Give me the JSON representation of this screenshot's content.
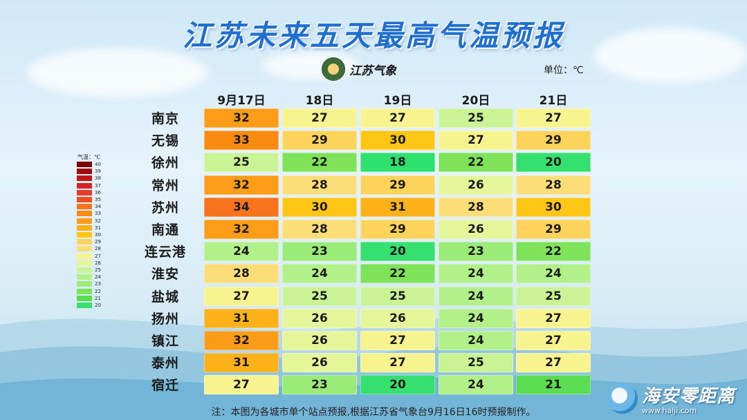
{
  "title": "江苏未来五天最高气温预报",
  "logo": {
    "text": "江苏气象"
  },
  "unit": "单位：℃",
  "chart_data": {
    "type": "table",
    "title": "江苏未来五天最高气温预报",
    "columns": [
      "9月17日",
      "18日",
      "19日",
      "20日",
      "21日"
    ],
    "rows": [
      {
        "city": "南京",
        "values": [
          32,
          27,
          27,
          25,
          27
        ]
      },
      {
        "city": "无锡",
        "values": [
          33,
          29,
          30,
          27,
          29
        ]
      },
      {
        "city": "徐州",
        "values": [
          25,
          22,
          18,
          22,
          20
        ]
      },
      {
        "city": "常州",
        "values": [
          32,
          28,
          29,
          26,
          28
        ]
      },
      {
        "city": "苏州",
        "values": [
          34,
          30,
          31,
          28,
          30
        ]
      },
      {
        "city": "南通",
        "values": [
          32,
          28,
          29,
          26,
          29
        ]
      },
      {
        "city": "连云港",
        "values": [
          24,
          23,
          20,
          23,
          22
        ]
      },
      {
        "city": "淮安",
        "values": [
          28,
          24,
          22,
          24,
          24
        ]
      },
      {
        "city": "盐城",
        "values": [
          27,
          25,
          25,
          24,
          25
        ]
      },
      {
        "city": "扬州",
        "values": [
          31,
          26,
          26,
          24,
          27
        ]
      },
      {
        "city": "镇江",
        "values": [
          32,
          26,
          27,
          24,
          27
        ]
      },
      {
        "city": "泰州",
        "values": [
          31,
          26,
          27,
          25,
          27
        ]
      },
      {
        "city": "宿迁",
        "values": [
          27,
          23,
          20,
          24,
          21
        ]
      }
    ],
    "legend": {
      "title": "气温：℃",
      "levels": [
        40,
        39,
        38,
        37,
        36,
        35,
        34,
        33,
        32,
        31,
        30,
        29,
        28,
        27,
        26,
        25,
        24,
        23,
        22,
        21,
        20
      ],
      "colors": {
        "40": "#7a0000",
        "39": "#a30a0a",
        "38": "#c41515",
        "37": "#d92222",
        "36": "#e83a2a",
        "35": "#f04e1e",
        "34": "#f7731c",
        "33": "#fb8a10",
        "32": "#fd9c16",
        "31": "#feb21a",
        "30": "#ffc616",
        "29": "#fed35c",
        "28": "#fddd77",
        "27": "#f7f38f",
        "26": "#e5f59a",
        "25": "#c9f394",
        "24": "#b2f08a",
        "23": "#9aeb78",
        "22": "#7fe35a",
        "21": "#5bdd52",
        "20": "#36e06e",
        "18": "#2ee06e"
      }
    }
  },
  "footnote": "注：本图为各城市单个站点预报,根据江苏省气象台9月16日16时预报制作。",
  "watermark": {
    "name": "海安零距离",
    "url": "www.halji.com"
  }
}
